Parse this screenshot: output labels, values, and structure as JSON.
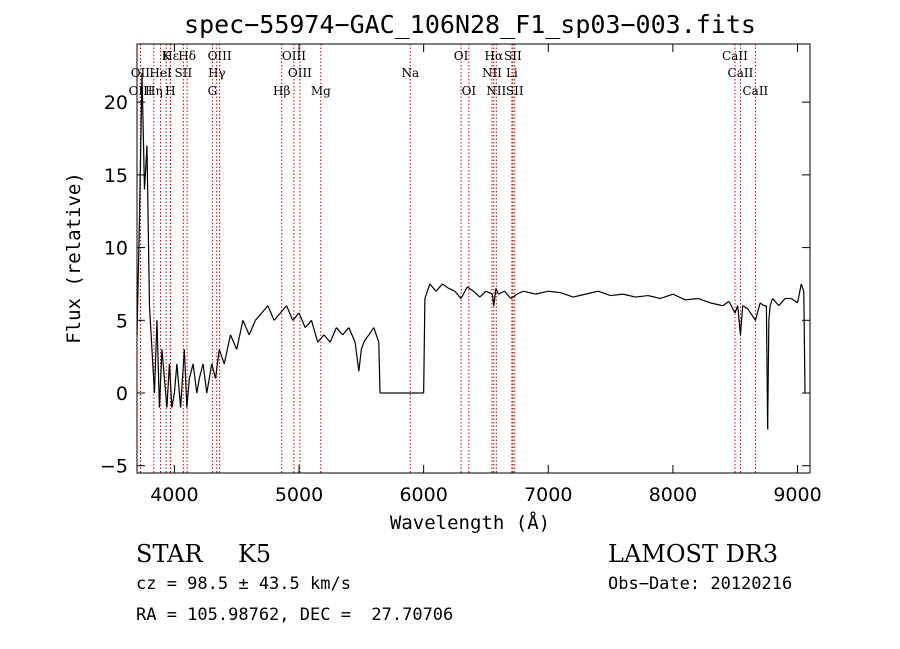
{
  "chart_data": {
    "type": "line",
    "title": "spec−55974−GAC_106N28_F1_sp03−003.fits",
    "xlabel": "Wavelength (Å)",
    "ylabel": "Flux (relative)",
    "xlim": [
      3700,
      9100
    ],
    "ylim": [
      -5.5,
      24
    ],
    "xticks": [
      4000,
      5000,
      6000,
      7000,
      8000,
      9000
    ],
    "xtick_labels": [
      "4000",
      "5000",
      "6000",
      "7000",
      "8000",
      "9000"
    ],
    "yticks": [
      -5,
      0,
      5,
      10,
      15,
      20
    ],
    "ytick_labels": [
      "−5",
      "0",
      "5",
      "10",
      "15",
      "20"
    ],
    "line_color": "#000000",
    "marker_color": "#cc0000",
    "series": [
      {
        "name": "flux",
        "x": [
          3700,
          3720,
          3740,
          3760,
          3780,
          3800,
          3820,
          3840,
          3860,
          3880,
          3900,
          3920,
          3940,
          3960,
          3980,
          4000,
          4020,
          4050,
          4080,
          4100,
          4120,
          4150,
          4180,
          4200,
          4230,
          4260,
          4300,
          4330,
          4360,
          4400,
          4450,
          4500,
          4550,
          4600,
          4650,
          4700,
          4750,
          4800,
          4850,
          4900,
          4950,
          5000,
          5050,
          5100,
          5150,
          5200,
          5250,
          5300,
          5350,
          5400,
          5450,
          5480,
          5500,
          5520,
          5560,
          5600,
          5640,
          5650,
          5660,
          5700,
          5800,
          5900,
          5950,
          6000,
          6010,
          6030,
          6050,
          6100,
          6150,
          6200,
          6250,
          6300,
          6350,
          6400,
          6450,
          6500,
          6550,
          6563,
          6580,
          6600,
          6650,
          6700,
          6750,
          6800,
          6900,
          7000,
          7100,
          7200,
          7300,
          7400,
          7500,
          7600,
          7700,
          7800,
          7900,
          8000,
          8100,
          8200,
          8300,
          8400,
          8450,
          8498,
          8520,
          8542,
          8560,
          8600,
          8662,
          8700,
          8730,
          8750,
          8755,
          8760,
          8770,
          8780,
          8800,
          8850,
          8900,
          8950,
          9000,
          9030,
          9050,
          9060
        ],
        "y": [
          4,
          12,
          22,
          14,
          17,
          6,
          3,
          0,
          5,
          -1,
          3,
          1,
          -1,
          2,
          -1,
          0,
          2,
          -1,
          3,
          -1,
          1,
          2,
          0,
          1,
          2,
          0,
          2,
          1,
          3,
          2,
          4,
          3,
          5,
          4,
          5,
          5.5,
          6,
          5,
          5.5,
          6,
          5,
          5.5,
          4.5,
          5,
          3.5,
          4,
          3.5,
          4.5,
          4,
          4.5,
          3.5,
          1.5,
          3,
          3.5,
          4,
          4.5,
          3.5,
          0,
          0,
          0,
          0,
          0,
          0,
          0,
          6.5,
          7,
          7.5,
          7,
          7.5,
          7.2,
          7,
          6.5,
          7.3,
          7,
          6.6,
          7,
          6.8,
          6,
          7.2,
          6.8,
          7,
          6.5,
          6.8,
          7,
          6.8,
          7,
          6.9,
          6.6,
          6.8,
          7,
          6.7,
          6.8,
          6.6,
          6.7,
          6.5,
          6.8,
          6.4,
          6.5,
          6.2,
          6,
          6.3,
          5.5,
          6,
          4,
          6,
          5.8,
          5,
          6.2,
          6,
          6,
          2,
          -2.5,
          5,
          6,
          6.5,
          6,
          6.5,
          6.5,
          6.2,
          7.5,
          7,
          0
        ]
      }
    ],
    "lines": [
      {
        "name": "Hε",
        "wl": 3970,
        "row": 0,
        "pos": "top"
      },
      {
        "name": "K",
        "wl": 3934,
        "row": 0,
        "pos": "top"
      },
      {
        "name": "Hδ",
        "wl": 4102,
        "row": 0,
        "pos": "top"
      },
      {
        "name": "OIII",
        "wl": 4363,
        "row": 0,
        "pos": "top"
      },
      {
        "name": "OIII",
        "wl": 4959,
        "row": 0,
        "pos": "top"
      },
      {
        "name": "OI",
        "wl": 6300,
        "row": 0,
        "pos": "top"
      },
      {
        "name": "Hα",
        "wl": 6563,
        "row": 0,
        "pos": "top"
      },
      {
        "name": "SII",
        "wl": 6716,
        "row": 0,
        "pos": "top"
      },
      {
        "name": "CaII",
        "wl": 8498,
        "row": 0,
        "pos": "top"
      },
      {
        "name": "OII",
        "wl": 3727,
        "row": 1,
        "pos": "top"
      },
      {
        "name": "HeI",
        "wl": 3889,
        "row": 1,
        "pos": "top"
      },
      {
        "name": "SII",
        "wl": 4072,
        "row": 1,
        "pos": "top"
      },
      {
        "name": "Hγ",
        "wl": 4340,
        "row": 1,
        "pos": "top"
      },
      {
        "name": "OIII",
        "wl": 5007,
        "row": 1,
        "pos": "top"
      },
      {
        "name": "Na",
        "wl": 5893,
        "row": 1,
        "pos": "top"
      },
      {
        "name": "NII",
        "wl": 6548,
        "row": 1,
        "pos": "top"
      },
      {
        "name": "Li",
        "wl": 6708,
        "row": 1,
        "pos": "top"
      },
      {
        "name": "CaII",
        "wl": 8542,
        "row": 1,
        "pos": "top"
      },
      {
        "name": "OIII",
        "wl": 3729,
        "row": 2,
        "pos": "top"
      },
      {
        "name": "Hη",
        "wl": 3835,
        "row": 2,
        "pos": "top"
      },
      {
        "name": "H",
        "wl": 3968,
        "row": 2,
        "pos": "top"
      },
      {
        "name": "G",
        "wl": 4305,
        "row": 2,
        "pos": "top"
      },
      {
        "name": "Hβ",
        "wl": 4861,
        "row": 2,
        "pos": "top"
      },
      {
        "name": "Mg",
        "wl": 5175,
        "row": 2,
        "pos": "top"
      },
      {
        "name": "OI",
        "wl": 6363,
        "row": 2,
        "pos": "top"
      },
      {
        "name": "NII",
        "wl": 6583,
        "row": 2,
        "pos": "top"
      },
      {
        "name": "SII",
        "wl": 6731,
        "row": 2,
        "pos": "top"
      },
      {
        "name": "CaII",
        "wl": 8662,
        "row": 2,
        "pos": "top"
      }
    ]
  },
  "info": {
    "object_class": "STAR",
    "subclass": "K5",
    "survey": "LAMOST DR3",
    "redshift": "cz = 98.5 ± 43.5 km/s",
    "obs_date": "Obs−Date: 20120216",
    "coords": "RA = 105.98762, DEC =  27.70706"
  }
}
